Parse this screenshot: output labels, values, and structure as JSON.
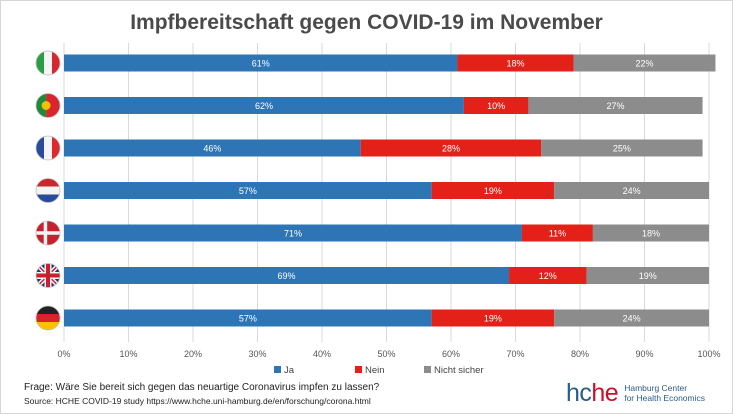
{
  "chart_data": {
    "type": "bar",
    "orientation": "horizontal",
    "stacked": true,
    "title": "Impfbereitschaft gegen COVID-19 im November",
    "categories": [
      "Italien",
      "Portugal",
      "Frankreich",
      "Niederlande",
      "Dänemark",
      "Vereinigtes Königreich",
      "Deutschland"
    ],
    "category_icons": [
      "flag-italy-icon",
      "flag-portugal-icon",
      "flag-france-icon",
      "flag-netherlands-icon",
      "flag-denmark-icon",
      "flag-uk-icon",
      "flag-germany-icon"
    ],
    "series": [
      {
        "name": "Ja",
        "color": "#2e75b6",
        "values": [
          61,
          62,
          46,
          57,
          71,
          69,
          57
        ]
      },
      {
        "name": "Nein",
        "color": "#e32119",
        "values": [
          18,
          10,
          28,
          19,
          11,
          12,
          19
        ]
      },
      {
        "name": "Nicht sicher",
        "color": "#8c8c8c",
        "values": [
          22,
          27,
          25,
          24,
          18,
          19,
          24
        ]
      }
    ],
    "xlim": [
      0,
      100
    ],
    "x_ticks": [
      "0%",
      "10%",
      "20%",
      "30%",
      "40%",
      "50%",
      "60%",
      "70%",
      "80%",
      "90%",
      "100%"
    ],
    "value_suffix": "%",
    "grid": true,
    "legend_position": "bottom"
  },
  "footer": {
    "question": "Frage: Wäre Sie bereit sich gegen das neuartige Coronavirus impfen zu lassen?",
    "source": "Source: HCHE COVID-19 study https://www.hche.uni-hamburg.de/en/forschung/corona.html"
  },
  "logo": {
    "word_a": "hc",
    "word_b": "he",
    "line1": "Hamburg Center",
    "line2": "for Health Economics"
  }
}
